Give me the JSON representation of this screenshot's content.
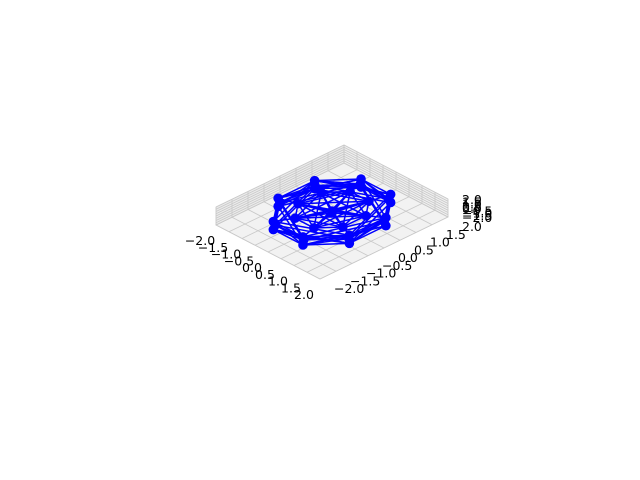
{
  "chart_data": {
    "type": "line",
    "subtype": "3d-wireframe-graph",
    "title": "",
    "xlabel": "",
    "ylabel": "",
    "zlabel": "",
    "xlim": [
      -2.0,
      2.0
    ],
    "ylim": [
      -2.0,
      2.0
    ],
    "zlim": [
      -2.0,
      2.0
    ],
    "x_ticks": [
      "−2.0",
      "−1.5",
      "−1.0",
      "−0.5",
      "0.0",
      "0.5",
      "1.0",
      "1.5",
      "2.0"
    ],
    "y_ticks": [
      "−2.0",
      "−1.5",
      "−1.0",
      "−0.5",
      "0.0",
      "0.5",
      "1.0",
      "1.5",
      "2.0"
    ],
    "z_ticks": [
      "−2.0",
      "−1.5",
      "−1.0",
      "−0.5",
      "0.0",
      "0.5",
      "1.0",
      "1.5",
      "2.0"
    ],
    "grid": true,
    "line_color": "#0000ff",
    "marker": "circle",
    "nodes": [
      {
        "x": 0.0,
        "y": 0.0,
        "z": 0.2
      },
      {
        "x": 0.0,
        "y": 0.0,
        "z": -0.2
      },
      {
        "x": -0.57,
        "y": 1.37,
        "z": 0.9
      },
      {
        "x": 0.57,
        "y": 1.37,
        "z": 0.9
      },
      {
        "x": 1.37,
        "y": 0.57,
        "z": 0.9
      },
      {
        "x": 1.37,
        "y": -0.57,
        "z": 0.9
      },
      {
        "x": 0.57,
        "y": -1.37,
        "z": 0.9
      },
      {
        "x": -0.57,
        "y": -1.37,
        "z": 0.9
      },
      {
        "x": -1.37,
        "y": -0.57,
        "z": 0.9
      },
      {
        "x": -1.37,
        "y": 0.57,
        "z": 0.9
      },
      {
        "x": -0.55,
        "y": 1.33,
        "z": 0.0
      },
      {
        "x": 0.55,
        "y": 1.33,
        "z": 0.0
      },
      {
        "x": 1.33,
        "y": 0.55,
        "z": 0.0
      },
      {
        "x": 1.33,
        "y": -0.55,
        "z": 0.0
      },
      {
        "x": 0.55,
        "y": -1.33,
        "z": 0.0
      },
      {
        "x": -0.55,
        "y": -1.33,
        "z": 0.0
      },
      {
        "x": -1.33,
        "y": -0.55,
        "z": 0.0
      },
      {
        "x": -1.33,
        "y": 0.55,
        "z": 0.0
      },
      {
        "x": -0.57,
        "y": 1.37,
        "z": -0.9
      },
      {
        "x": 0.57,
        "y": 1.37,
        "z": -0.9
      },
      {
        "x": 1.37,
        "y": 0.57,
        "z": -0.9
      },
      {
        "x": 1.37,
        "y": -0.57,
        "z": -0.9
      },
      {
        "x": 0.57,
        "y": -1.37,
        "z": -0.9
      },
      {
        "x": -0.57,
        "y": -1.37,
        "z": -0.9
      },
      {
        "x": -1.37,
        "y": -0.57,
        "z": -0.9
      },
      {
        "x": -1.37,
        "y": 0.57,
        "z": -0.9
      },
      {
        "x": -0.36,
        "y": 0.86,
        "z": 0.5
      },
      {
        "x": 0.36,
        "y": 0.86,
        "z": 0.5
      },
      {
        "x": 0.86,
        "y": 0.36,
        "z": 0.5
      },
      {
        "x": 0.86,
        "y": -0.36,
        "z": 0.5
      },
      {
        "x": 0.36,
        "y": -0.86,
        "z": 0.5
      },
      {
        "x": -0.36,
        "y": -0.86,
        "z": 0.5
      },
      {
        "x": -0.86,
        "y": -0.36,
        "z": 0.5
      },
      {
        "x": -0.86,
        "y": 0.36,
        "z": 0.5
      }
    ]
  }
}
